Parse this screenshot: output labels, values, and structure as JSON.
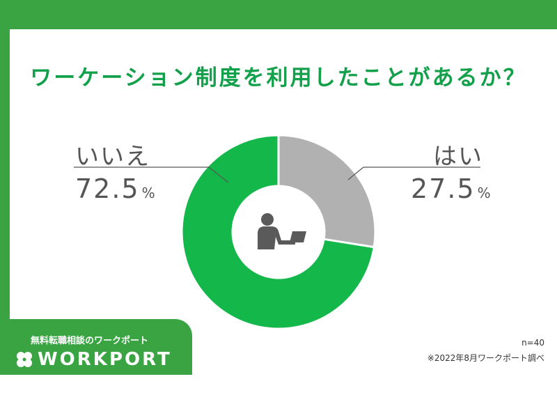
{
  "title": "ワーケーション制度を利用したことがあるか？",
  "chart_data": {
    "type": "pie",
    "categories": [
      "はい",
      "いいえ"
    ],
    "values": [
      27.5,
      72.5
    ],
    "unit": "%",
    "colors": [
      "#b1b1b1",
      "#13b74a"
    ],
    "center_icon": "person-at-laptop-icon"
  },
  "labels": {
    "yes": {
      "text": "はい",
      "value": "27.5",
      "unit": "%"
    },
    "no": {
      "text": "いいえ",
      "value": "72.5",
      "unit": "%"
    }
  },
  "footer": {
    "sample_size": "n=40",
    "source": "※2022年8月ワークポート調べ"
  },
  "brand": {
    "tagline": "無料転職相談のワークポート",
    "name": "WORKPORT",
    "logo_icon": "clover-icon"
  }
}
